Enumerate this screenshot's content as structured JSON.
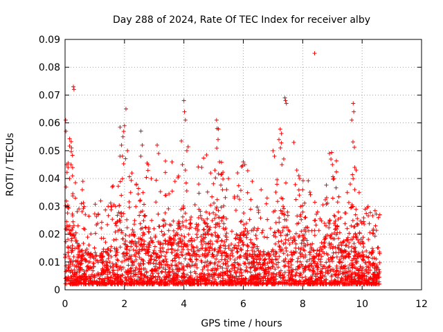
{
  "chart_data": {
    "type": "scatter",
    "title": "Day 288 of 2024, Rate Of TEC Index for receiver alby",
    "xlabel": "GPS time / hours",
    "ylabel": "ROTI / TECUs",
    "xlim": [
      0,
      12
    ],
    "ylim": [
      0,
      0.09
    ],
    "x_ticks": [
      0,
      2,
      4,
      6,
      8,
      10,
      12
    ],
    "y_ticks": [
      0,
      0.01,
      0.02,
      0.03,
      0.04,
      0.05,
      0.06,
      0.07,
      0.08,
      0.09
    ],
    "x_tick_labels": [
      "0",
      "2",
      "4",
      "6",
      "8",
      "10",
      "12"
    ],
    "y_tick_labels": [
      "0",
      "0.01",
      "0.02",
      "0.03",
      "0.04",
      "0.05",
      "0.06",
      "0.07",
      "0.08",
      "0.09"
    ],
    "grid": true,
    "marker": "+",
    "marker_color": "#ff0000",
    "x_data_range": [
      0,
      10.6
    ],
    "series": [
      {
        "name": "ROTI",
        "points": [
          {
            "x": 0.02,
            "y": 0.061
          },
          {
            "x": 0.03,
            "y": 0.057
          },
          {
            "x": 0.05,
            "y": 0.045
          },
          {
            "x": 0.1,
            "y": 0.044
          },
          {
            "x": 0.15,
            "y": 0.04
          },
          {
            "x": 0.2,
            "y": 0.045
          },
          {
            "x": 0.25,
            "y": 0.041
          },
          {
            "x": 0.28,
            "y": 0.073
          },
          {
            "x": 0.3,
            "y": 0.072
          },
          {
            "x": 0.6,
            "y": 0.039
          },
          {
            "x": 0.58,
            "y": 0.036
          },
          {
            "x": 0.55,
            "y": 0.031
          },
          {
            "x": 1.2,
            "y": 0.032
          },
          {
            "x": 1.45,
            "y": 0.03
          },
          {
            "x": 1.7,
            "y": 0.03
          },
          {
            "x": 1.85,
            "y": 0.048
          },
          {
            "x": 1.9,
            "y": 0.052
          },
          {
            "x": 1.95,
            "y": 0.055
          },
          {
            "x": 2.0,
            "y": 0.059
          },
          {
            "x": 2.05,
            "y": 0.065
          },
          {
            "x": 2.1,
            "y": 0.05
          },
          {
            "x": 2.25,
            "y": 0.042
          },
          {
            "x": 2.4,
            "y": 0.038
          },
          {
            "x": 2.55,
            "y": 0.048
          },
          {
            "x": 2.6,
            "y": 0.052
          },
          {
            "x": 2.8,
            "y": 0.045
          },
          {
            "x": 2.9,
            "y": 0.04
          },
          {
            "x": 3.1,
            "y": 0.052
          },
          {
            "x": 3.15,
            "y": 0.049
          },
          {
            "x": 3.4,
            "y": 0.034
          },
          {
            "x": 3.6,
            "y": 0.046
          },
          {
            "x": 3.7,
            "y": 0.039
          },
          {
            "x": 3.95,
            "y": 0.045
          },
          {
            "x": 4.0,
            "y": 0.068
          },
          {
            "x": 4.02,
            "y": 0.064
          },
          {
            "x": 4.05,
            "y": 0.061
          },
          {
            "x": 4.1,
            "y": 0.05
          },
          {
            "x": 4.05,
            "y": 0.043
          },
          {
            "x": 4.5,
            "y": 0.038
          },
          {
            "x": 4.6,
            "y": 0.044
          },
          {
            "x": 4.9,
            "y": 0.042
          },
          {
            "x": 5.1,
            "y": 0.061
          },
          {
            "x": 5.12,
            "y": 0.058
          },
          {
            "x": 5.15,
            "y": 0.054
          },
          {
            "x": 5.2,
            "y": 0.046
          },
          {
            "x": 5.3,
            "y": 0.036
          },
          {
            "x": 5.5,
            "y": 0.04
          },
          {
            "x": 5.7,
            "y": 0.033
          },
          {
            "x": 6.0,
            "y": 0.046
          },
          {
            "x": 6.05,
            "y": 0.045
          },
          {
            "x": 6.3,
            "y": 0.039
          },
          {
            "x": 6.6,
            "y": 0.036
          },
          {
            "x": 6.8,
            "y": 0.033
          },
          {
            "x": 7.0,
            "y": 0.05
          },
          {
            "x": 7.05,
            "y": 0.048
          },
          {
            "x": 7.2,
            "y": 0.054
          },
          {
            "x": 7.25,
            "y": 0.051
          },
          {
            "x": 7.3,
            "y": 0.045
          },
          {
            "x": 7.4,
            "y": 0.069
          },
          {
            "x": 7.42,
            "y": 0.068
          },
          {
            "x": 7.45,
            "y": 0.067
          },
          {
            "x": 7.7,
            "y": 0.053
          },
          {
            "x": 7.8,
            "y": 0.043
          },
          {
            "x": 7.9,
            "y": 0.04
          },
          {
            "x": 8.0,
            "y": 0.036
          },
          {
            "x": 8.4,
            "y": 0.085
          },
          {
            "x": 8.5,
            "y": 0.028
          },
          {
            "x": 8.9,
            "y": 0.049
          },
          {
            "x": 8.95,
            "y": 0.047
          },
          {
            "x": 9.0,
            "y": 0.045
          },
          {
            "x": 9.05,
            "y": 0.04
          },
          {
            "x": 9.2,
            "y": 0.028
          },
          {
            "x": 9.5,
            "y": 0.035
          },
          {
            "x": 9.6,
            "y": 0.038
          },
          {
            "x": 9.65,
            "y": 0.061
          },
          {
            "x": 9.7,
            "y": 0.067
          },
          {
            "x": 9.72,
            "y": 0.064
          },
          {
            "x": 9.75,
            "y": 0.044
          },
          {
            "x": 9.8,
            "y": 0.043
          },
          {
            "x": 9.9,
            "y": 0.035
          },
          {
            "x": 10.1,
            "y": 0.029
          },
          {
            "x": 10.2,
            "y": 0.03
          },
          {
            "x": 10.45,
            "y": 0.023
          }
        ]
      }
    ]
  }
}
